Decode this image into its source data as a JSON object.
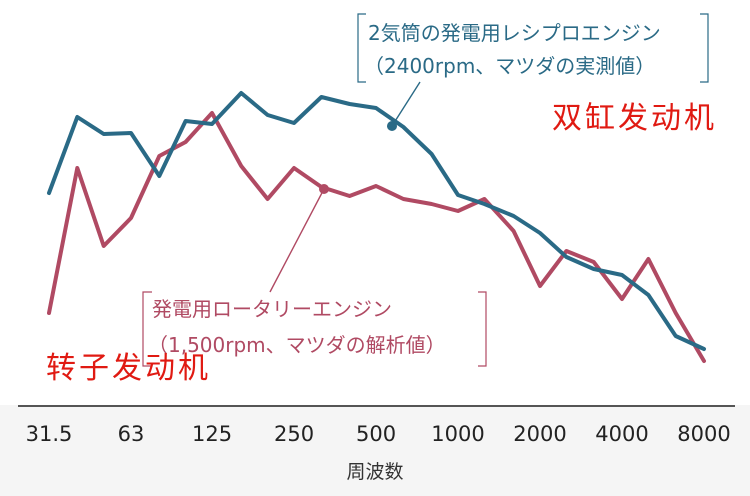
{
  "chart_data": {
    "type": "line",
    "xlabel": "周波数",
    "ylabel": "",
    "grid": false,
    "categories": [
      "31.5",
      "63",
      "125",
      "250",
      "500",
      "1000",
      "2000",
      "4000",
      "8000"
    ],
    "series": [
      {
        "name": "2気筒の発電用レシプロエンジン",
        "color": "#2a6a86",
        "x": [
          31.5,
          40,
          50,
          63,
          80,
          100,
          125,
          160,
          200,
          250,
          315,
          400,
          500,
          630,
          800,
          1000,
          1250,
          1600,
          2000,
          2500,
          3150,
          4000,
          5000,
          6300,
          8000
        ],
        "y": [
          193,
          117,
          134,
          133,
          176,
          121,
          124,
          93,
          115,
          123,
          97,
          104,
          108,
          127,
          154,
          195,
          204,
          216,
          233,
          257,
          269,
          275,
          295,
          336,
          349
        ]
      },
      {
        "name": "発電用ロータリーエンジン",
        "color": "#b04a63",
        "x": [
          31.5,
          40,
          50,
          63,
          80,
          100,
          125,
          160,
          200,
          250,
          315,
          400,
          500,
          630,
          800,
          1000,
          1250,
          1600,
          2000,
          2500,
          3150,
          4000,
          5000,
          6300,
          8000
        ],
        "y": [
          313,
          168,
          246,
          218,
          156,
          142,
          113,
          166,
          199,
          168,
          187,
          196,
          186,
          199,
          204,
          211,
          199,
          231,
          286,
          251,
          262,
          299,
          259,
          313,
          361
        ]
      }
    ],
    "annotations": [
      {
        "series": 0,
        "lines": [
          "2気筒の発電用レシプロエンジン",
          "（2400rpm、マツダの実測値）"
        ]
      },
      {
        "series": 1,
        "lines": [
          "発電用ロータリーエンジン",
          "（1,500rpm、マツダの解析値）"
        ]
      }
    ],
    "overlay_labels": {
      "top_right": "双缸发动机",
      "bottom_left": "转子发动机"
    }
  }
}
